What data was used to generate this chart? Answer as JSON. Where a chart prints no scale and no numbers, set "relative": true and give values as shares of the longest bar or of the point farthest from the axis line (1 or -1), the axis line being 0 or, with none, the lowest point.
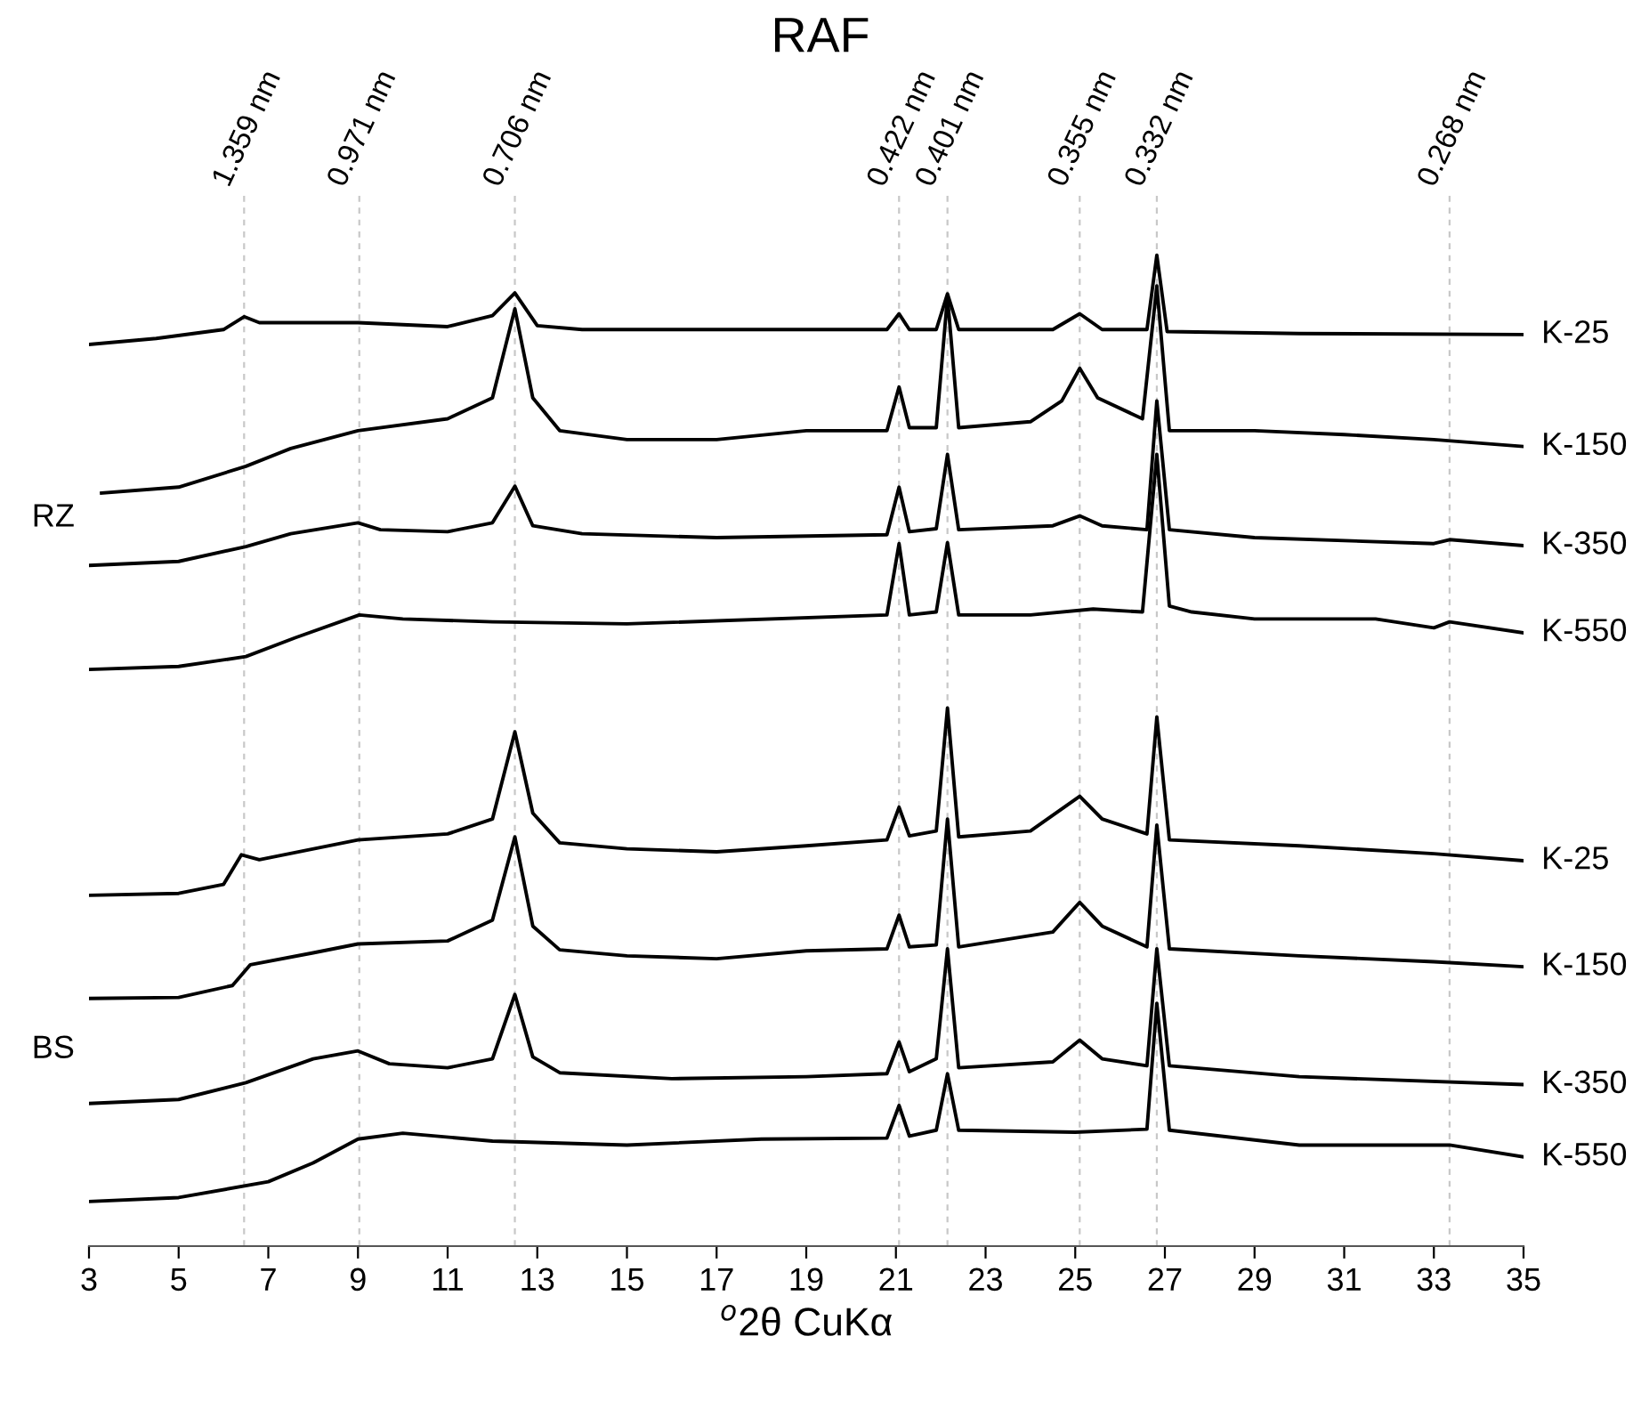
{
  "chart_data": {
    "type": "line",
    "relative": true,
    "title": "RAF",
    "xlabel": "$^{o}$2θ CuKα",
    "xlim": [
      3,
      35
    ],
    "xticks": [
      3,
      5,
      7,
      9,
      11,
      13,
      15,
      17,
      19,
      21,
      23,
      25,
      27,
      29,
      31,
      33,
      35
    ],
    "annotations": [
      "RZ",
      "BS"
    ],
    "ref_lines": [
      {
        "axis": "x",
        "value": 6.46,
        "label": "1.359 nm",
        "color": "#c8c8c8",
        "line_style": "dashed"
      },
      {
        "axis": "x",
        "value": 9.03,
        "label": "0.971 nm",
        "color": "#c8c8c8",
        "line_style": "dashed"
      },
      {
        "axis": "x",
        "value": 12.5,
        "label": "0.706 nm",
        "color": "#c8c8c8",
        "line_style": "dashed"
      },
      {
        "axis": "x",
        "value": 21.07,
        "label": "0.422 nm",
        "color": "#c8c8c8",
        "line_style": "dashed"
      },
      {
        "axis": "x",
        "value": 22.15,
        "label": "0.401 nm",
        "color": "#c8c8c8",
        "line_style": "dashed"
      },
      {
        "axis": "x",
        "value": 25.1,
        "label": "0.355 nm",
        "color": "#c8c8c8",
        "line_style": "dashed"
      },
      {
        "axis": "x",
        "value": 26.82,
        "label": "0.332 nm",
        "color": "#c8c8c8",
        "line_style": "dashed"
      },
      {
        "axis": "x",
        "value": 33.35,
        "label": "0.268 nm",
        "color": "#c8c8c8",
        "line_style": "dashed"
      }
    ],
    "series": [
      {
        "name": "K-25",
        "color": "#000000",
        "x": [
          3,
          4.5,
          6,
          6.46,
          6.8,
          9,
          11,
          12,
          12.5,
          13,
          14,
          20.8,
          21.07,
          21.3,
          21.9,
          22.15,
          22.4,
          24.5,
          25.1,
          25.6,
          26.6,
          26.82,
          27.05,
          30,
          35
        ],
        "values": [
          0.91,
          0.916,
          0.925,
          0.938,
          0.932,
          0.932,
          0.928,
          0.939,
          0.962,
          0.929,
          0.925,
          0.925,
          0.941,
          0.925,
          0.925,
          0.961,
          0.925,
          0.925,
          0.941,
          0.925,
          0.925,
          1.0,
          0.923,
          0.921,
          0.92
        ]
      },
      {
        "name": "K-150",
        "color": "#000000",
        "x": [
          3.28,
          5,
          6.5,
          7.5,
          9,
          11,
          12,
          12.5,
          12.9,
          13.5,
          15,
          17,
          19,
          20.8,
          21.07,
          21.3,
          21.9,
          22.15,
          22.4,
          24,
          24.7,
          25.1,
          25.5,
          26.5,
          26.82,
          27.1,
          29,
          31,
          33,
          35
        ],
        "values": [
          0.76,
          0.766,
          0.787,
          0.805,
          0.823,
          0.835,
          0.856,
          0.946,
          0.856,
          0.823,
          0.814,
          0.814,
          0.823,
          0.823,
          0.867,
          0.826,
          0.826,
          0.958,
          0.826,
          0.832,
          0.853,
          0.886,
          0.856,
          0.835,
          0.969,
          0.823,
          0.823,
          0.819,
          0.814,
          0.807
        ]
      },
      {
        "name": "K-350",
        "color": "#000000",
        "x": [
          3,
          5,
          6.5,
          7.5,
          9,
          9.5,
          11,
          12,
          12.5,
          12.9,
          14,
          17,
          20.8,
          21.07,
          21.3,
          21.9,
          22.15,
          22.4,
          24.5,
          25.1,
          25.6,
          26.6,
          26.82,
          27.1,
          29,
          33,
          33.35,
          35
        ],
        "values": [
          0.687,
          0.691,
          0.706,
          0.719,
          0.73,
          0.723,
          0.721,
          0.73,
          0.767,
          0.727,
          0.719,
          0.715,
          0.718,
          0.766,
          0.721,
          0.724,
          0.799,
          0.723,
          0.727,
          0.737,
          0.727,
          0.723,
          0.853,
          0.723,
          0.715,
          0.709,
          0.713,
          0.707
        ]
      },
      {
        "name": "K-550",
        "color": "#000000",
        "x": [
          3,
          5,
          6.5,
          7.6,
          9.03,
          10,
          12,
          15,
          20.8,
          21.07,
          21.3,
          21.9,
          22.15,
          22.4,
          24,
          25.4,
          26.5,
          26.82,
          27.1,
          27.6,
          29,
          31.7,
          33,
          33.35,
          35
        ],
        "values": [
          0.582,
          0.585,
          0.595,
          0.614,
          0.637,
          0.633,
          0.63,
          0.628,
          0.637,
          0.709,
          0.637,
          0.64,
          0.71,
          0.637,
          0.637,
          0.643,
          0.64,
          0.799,
          0.646,
          0.64,
          0.633,
          0.633,
          0.624,
          0.63,
          0.619
        ]
      },
      {
        "name": "K-25",
        "color": "#000000",
        "x": [
          3,
          5,
          6,
          6.4,
          6.8,
          9,
          11,
          12,
          12.5,
          12.9,
          13.5,
          15,
          17,
          19,
          20.8,
          21.07,
          21.3,
          21.9,
          22.15,
          22.4,
          24,
          25.1,
          25.6,
          26.6,
          26.82,
          27.1,
          30,
          33,
          35
        ],
        "values": [
          0.354,
          0.356,
          0.365,
          0.395,
          0.39,
          0.41,
          0.416,
          0.431,
          0.519,
          0.437,
          0.407,
          0.401,
          0.398,
          0.404,
          0.41,
          0.443,
          0.414,
          0.419,
          0.543,
          0.413,
          0.419,
          0.454,
          0.431,
          0.416,
          0.534,
          0.41,
          0.404,
          0.396,
          0.389
        ]
      },
      {
        "name": "K-150",
        "color": "#000000",
        "x": [
          3,
          5,
          6.2,
          6.6,
          8,
          9,
          11,
          12,
          12.5,
          12.9,
          13.5,
          15,
          17,
          19,
          20.8,
          21.07,
          21.3,
          21.9,
          22.15,
          22.4,
          24.5,
          25.1,
          25.6,
          26.6,
          26.82,
          27.1,
          30,
          33,
          35
        ],
        "values": [
          0.25,
          0.251,
          0.263,
          0.284,
          0.296,
          0.305,
          0.308,
          0.329,
          0.413,
          0.323,
          0.299,
          0.293,
          0.29,
          0.298,
          0.3,
          0.334,
          0.302,
          0.304,
          0.431,
          0.302,
          0.317,
          0.347,
          0.323,
          0.302,
          0.425,
          0.3,
          0.293,
          0.287,
          0.282
        ]
      },
      {
        "name": "K-350",
        "color": "#000000",
        "x": [
          3,
          5,
          6.5,
          8,
          9,
          9.7,
          11,
          12,
          12.5,
          12.9,
          13.5,
          16,
          19,
          20.8,
          21.07,
          21.3,
          21.9,
          22.15,
          22.4,
          24.5,
          25.1,
          25.6,
          26.6,
          26.82,
          27.1,
          30,
          35
        ],
        "values": [
          0.144,
          0.148,
          0.165,
          0.189,
          0.197,
          0.184,
          0.18,
          0.189,
          0.254,
          0.191,
          0.175,
          0.169,
          0.171,
          0.174,
          0.206,
          0.176,
          0.189,
          0.3,
          0.18,
          0.186,
          0.208,
          0.189,
          0.182,
          0.3,
          0.182,
          0.171,
          0.163
        ]
      },
      {
        "name": "K-550",
        "color": "#000000",
        "x": [
          3,
          5,
          7,
          8,
          9,
          10,
          12,
          15,
          18,
          20.8,
          21.07,
          21.3,
          21.9,
          22.15,
          22.4,
          25,
          26.6,
          26.82,
          27.1,
          30,
          33.35,
          35
        ],
        "values": [
          0.045,
          0.049,
          0.065,
          0.084,
          0.108,
          0.114,
          0.106,
          0.102,
          0.108,
          0.109,
          0.142,
          0.111,
          0.117,
          0.174,
          0.117,
          0.115,
          0.118,
          0.245,
          0.117,
          0.102,
          0.102,
          0.09
        ]
      }
    ]
  }
}
